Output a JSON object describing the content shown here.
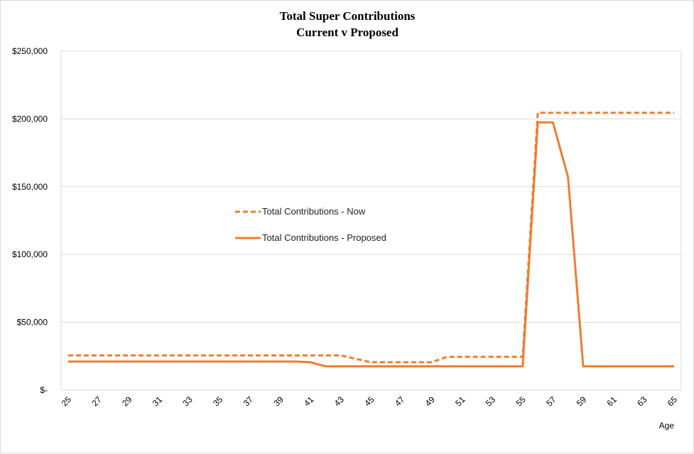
{
  "chart_data": {
    "type": "line",
    "title": "Total Super Contributions",
    "subtitle": "Current v Proposed",
    "xlabel": "Age",
    "ylabel": "",
    "x": [
      25,
      26,
      27,
      28,
      29,
      30,
      31,
      32,
      33,
      34,
      35,
      36,
      37,
      38,
      39,
      40,
      41,
      42,
      43,
      44,
      45,
      46,
      47,
      48,
      49,
      50,
      51,
      52,
      53,
      54,
      55,
      56,
      57,
      58,
      59,
      60,
      61,
      62,
      63,
      64,
      65
    ],
    "x_tick_labels": [
      "25",
      "27",
      "29",
      "31",
      "33",
      "35",
      "37",
      "39",
      "41",
      "43",
      "45",
      "47",
      "49",
      "51",
      "53",
      "55",
      "57",
      "59",
      "61",
      "63",
      "65"
    ],
    "ylim": [
      0,
      250000
    ],
    "y_ticks": [
      0,
      50000,
      100000,
      150000,
      200000,
      250000
    ],
    "y_tick_labels": [
      "$-",
      "$50,000",
      "$100,000",
      "$150,000",
      "$200,000",
      "$250,000"
    ],
    "grid": true,
    "legend_position": "center-left",
    "series": [
      {
        "name": "Total Contributions - Now",
        "style": "dashed",
        "color": "#ED7D31",
        "values": [
          25500,
          25500,
          25500,
          25500,
          25500,
          25500,
          25500,
          25500,
          25500,
          25500,
          25500,
          25500,
          25500,
          25500,
          25500,
          25500,
          25500,
          25500,
          25500,
          23000,
          20500,
          20500,
          20500,
          20500,
          20500,
          24500,
          24500,
          24500,
          24500,
          24500,
          24500,
          204500,
          204500,
          204500,
          204500,
          204500,
          204500,
          204500,
          204500,
          204500,
          204500
        ]
      },
      {
        "name": "Total Contributions - Proposed",
        "style": "solid",
        "color": "#ED7D31",
        "values": [
          21000,
          21000,
          21000,
          21000,
          21000,
          21000,
          21000,
          21000,
          21000,
          21000,
          21000,
          21000,
          21000,
          21000,
          21000,
          21000,
          20500,
          17500,
          17500,
          17500,
          17500,
          17500,
          17500,
          17500,
          17500,
          17500,
          17500,
          17500,
          17500,
          17500,
          17500,
          197500,
          197500,
          157000,
          17500,
          17500,
          17500,
          17500,
          17500,
          17500,
          17500
        ]
      }
    ]
  }
}
